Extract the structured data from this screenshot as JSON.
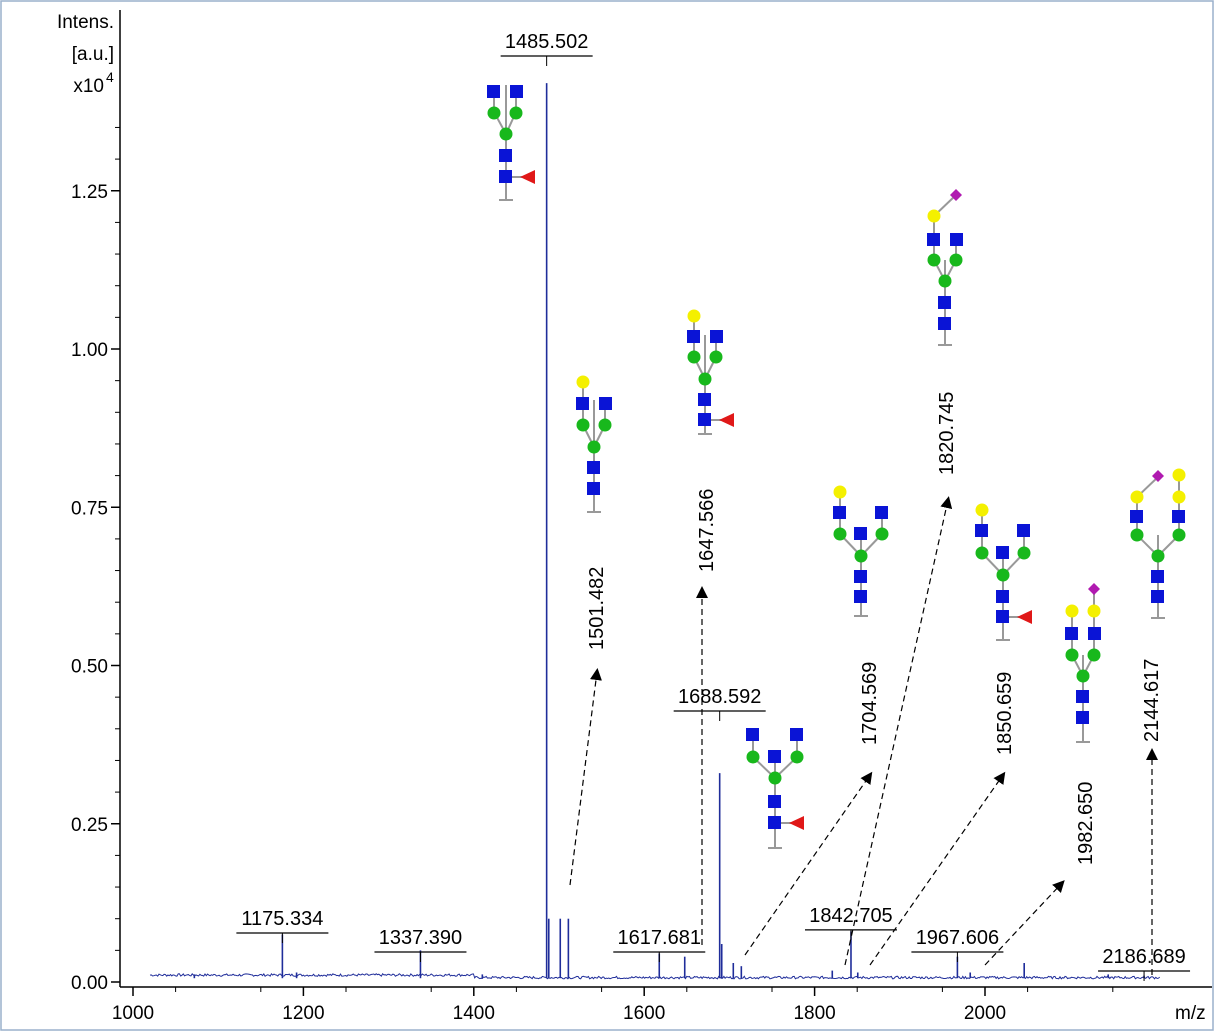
{
  "chart_data": {
    "type": "line",
    "title": "",
    "ylabel_lines": [
      "Intens.",
      "[a.u.]",
      "x10",
      "4"
    ],
    "xlabel": "m/z",
    "xlim": [
      990,
      2210
    ],
    "ylim": [
      0,
      1.4
    ],
    "x_ticks": [
      1000,
      1200,
      1400,
      1600,
      1800,
      2000
    ],
    "y_ticks": [
      0.0,
      0.25,
      0.5,
      0.75,
      1.0,
      1.25
    ],
    "y_tick_labels": [
      "0.00",
      "0.25",
      "0.50",
      "0.75",
      "1.00",
      "1.25"
    ],
    "grid": false,
    "series": [
      {
        "color": "#1f2d9a",
        "peaks": [
          {
            "mz": 1072,
            "intensity": 0.012
          },
          {
            "mz": 1175.334,
            "intensity": 0.075
          },
          {
            "mz": 1192,
            "intensity": 0.015
          },
          {
            "mz": 1337.39,
            "intensity": 0.05
          },
          {
            "mz": 1410,
            "intensity": 0.012
          },
          {
            "mz": 1485.502,
            "intensity": 1.42
          },
          {
            "mz": 1488,
            "intensity": 0.1
          },
          {
            "mz": 1501.482,
            "intensity": 0.1
          },
          {
            "mz": 1511,
            "intensity": 0.1
          },
          {
            "mz": 1617.681,
            "intensity": 0.045
          },
          {
            "mz": 1647.566,
            "intensity": 0.04
          },
          {
            "mz": 1688.592,
            "intensity": 0.33
          },
          {
            "mz": 1691,
            "intensity": 0.06
          },
          {
            "mz": 1704.569,
            "intensity": 0.03
          },
          {
            "mz": 1714,
            "intensity": 0.025
          },
          {
            "mz": 1820.745,
            "intensity": 0.018
          },
          {
            "mz": 1842.705,
            "intensity": 0.08
          },
          {
            "mz": 1850.659,
            "intensity": 0.015
          },
          {
            "mz": 1967.606,
            "intensity": 0.04
          },
          {
            "mz": 1982.65,
            "intensity": 0.015
          },
          {
            "mz": 2046,
            "intensity": 0.03
          },
          {
            "mz": 2144.617,
            "intensity": 0.012
          },
          {
            "mz": 2186.689,
            "intensity": 0.01
          }
        ]
      }
    ],
    "peak_labels": [
      {
        "text": "1485.502",
        "mz": 1485.502,
        "y": 1.36
      },
      {
        "text": "1688.592",
        "mz": 1688.592,
        "y": 0.42
      },
      {
        "text": "1175.334",
        "mz": 1175.334,
        "y": 0.09
      },
      {
        "text": "1337.390",
        "mz": 1337.39,
        "y": 0.06
      },
      {
        "text": "1617.681",
        "mz": 1617.681,
        "y": 0.06
      },
      {
        "text": "1842.705",
        "mz": 1842.705,
        "y": 0.095
      },
      {
        "text": "1967.606",
        "mz": 1967.606,
        "y": 0.06
      },
      {
        "text": "2186.689",
        "mz": 2186.689,
        "y": 0.03
      }
    ],
    "annotations": [
      {
        "text": "1501.482",
        "mz": 1501.482
      },
      {
        "text": "1647.566",
        "mz": 1647.566
      },
      {
        "text": "1704.569",
        "mz": 1704.569
      },
      {
        "text": "1820.745",
        "mz": 1820.745
      },
      {
        "text": "1850.659",
        "mz": 1850.659
      },
      {
        "text": "1982.650",
        "mz": 1982.65
      },
      {
        "text": "2144.617",
        "mz": 2144.617
      }
    ],
    "glycan_colors": {
      "GlcNAc": "#0a14d6",
      "Mannose": "#18b81c",
      "Galactose": "#f4f000",
      "Fucose": "#e01818",
      "NeuAc": "#b01ab0"
    }
  }
}
